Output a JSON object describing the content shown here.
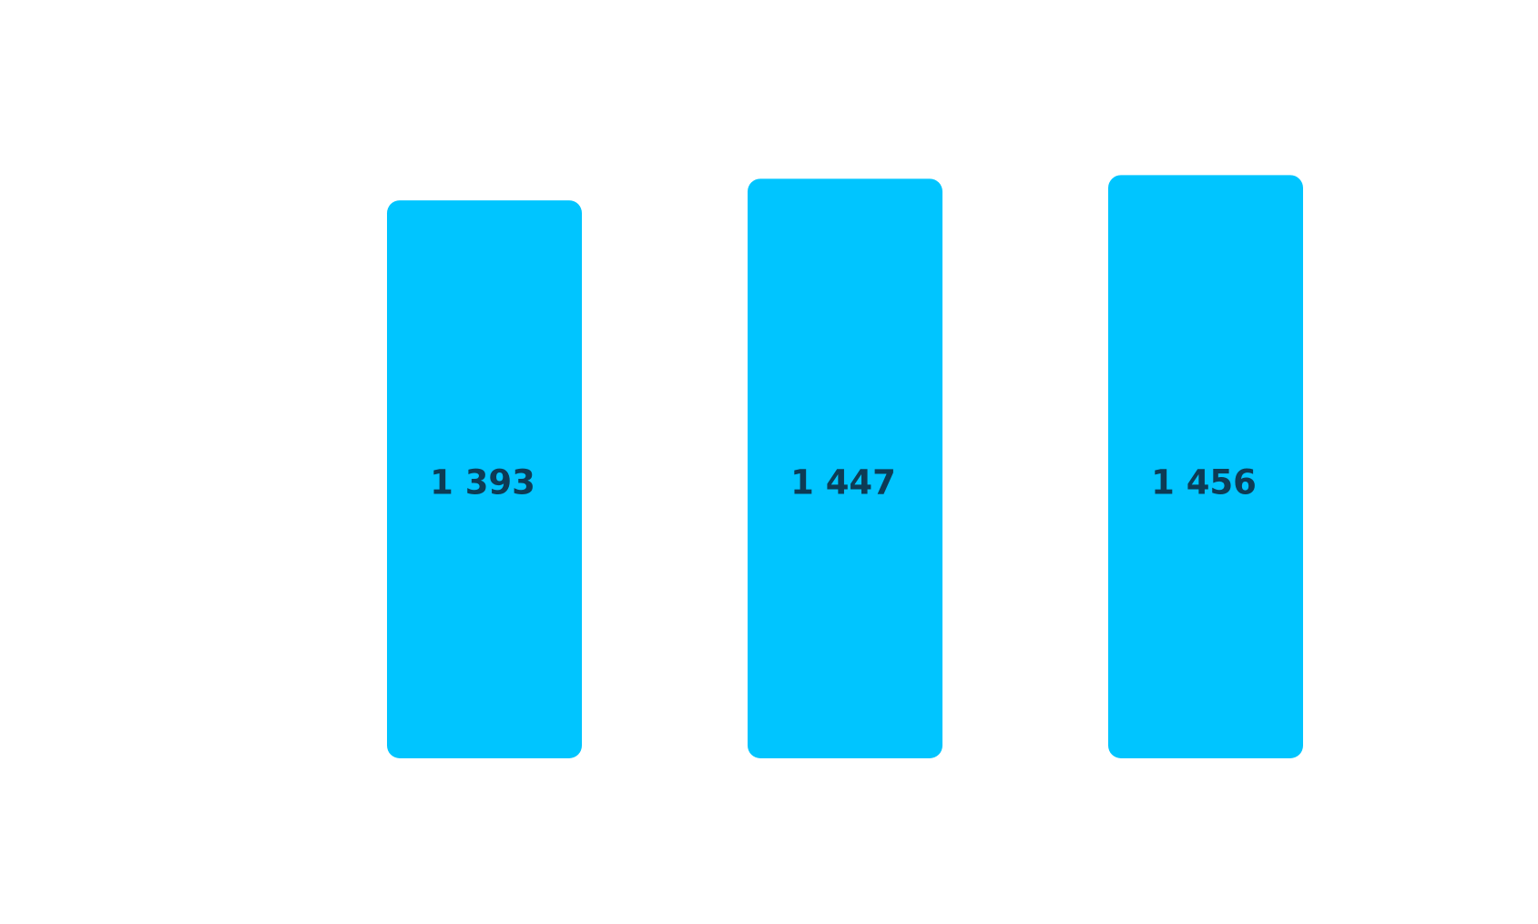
{
  "chart_data": {
    "type": "bar",
    "categories": [],
    "values": [
      1393,
      1447,
      1456
    ],
    "labels": [
      "1 393",
      "1 447",
      "1 456"
    ],
    "ylim": [
      0,
      1500
    ],
    "grid": false,
    "legend": "none",
    "colors": {
      "bar": "#00c5ff",
      "label": "#0d3b55",
      "background": "#ffffff"
    }
  }
}
